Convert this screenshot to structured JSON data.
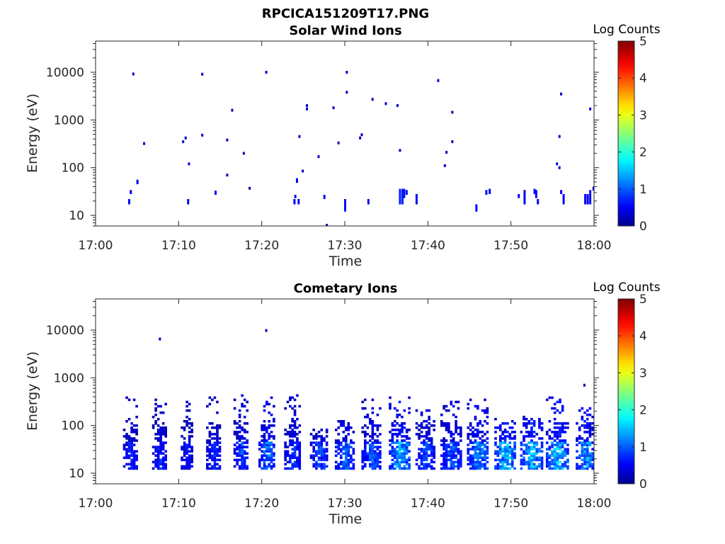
{
  "figure": {
    "title": "RPCICA151209T17.PNG"
  },
  "colorbar_label": "Log Counts",
  "colors": {
    "colormap": "jet",
    "colormap_stops": [
      "#00008f",
      "#0000ff",
      "#00ffff",
      "#ffff00",
      "#ff0000",
      "#800000"
    ]
  },
  "chart_data": [
    {
      "type": "heatmap",
      "title": "Solar Wind Ions",
      "xlabel": "Time",
      "ylabel": "Energy (eV)",
      "x_tick_labels": [
        "17:00",
        "17:10",
        "17:20",
        "17:30",
        "17:40",
        "17:50",
        "18:00"
      ],
      "x_ticks_min": [
        0,
        10,
        20,
        30,
        40,
        50,
        60
      ],
      "xlim_min": [
        0,
        60
      ],
      "y_scale": "log",
      "y_tick_labels": [
        "10",
        "100",
        "1000",
        "10000"
      ],
      "y_ticks": [
        10,
        100,
        1000,
        10000
      ],
      "ylim": [
        6,
        45000
      ],
      "colorbar": {
        "label": "Log Counts",
        "range": [
          0,
          5
        ],
        "tick_labels": [
          "0",
          "1",
          "2",
          "3",
          "4",
          "5"
        ],
        "ticks": [
          0,
          1,
          2,
          3,
          4,
          5
        ]
      },
      "points": [
        [
          4.5,
          9200,
          0.3
        ],
        [
          5.8,
          320,
          0.3
        ],
        [
          10.5,
          350,
          0.3
        ],
        [
          10.8,
          420,
          0.3
        ],
        [
          11.2,
          120,
          0.4
        ],
        [
          12.8,
          9100,
          0.3
        ],
        [
          12.8,
          480,
          0.3
        ],
        [
          15.8,
          380,
          0.3
        ],
        [
          15.8,
          70,
          0.4
        ],
        [
          16.4,
          1600,
          0.3
        ],
        [
          17.8,
          200,
          0.3
        ],
        [
          20.5,
          10000,
          0.3
        ],
        [
          24.5,
          450,
          0.3
        ],
        [
          24.9,
          85,
          0.3
        ],
        [
          25.4,
          2000,
          0.3
        ],
        [
          25.4,
          1700,
          0.3
        ],
        [
          26.8,
          170,
          0.3
        ],
        [
          28.6,
          1800,
          0.3
        ],
        [
          29.2,
          330,
          0.3
        ],
        [
          30.2,
          3800,
          0.3
        ],
        [
          30.2,
          10000,
          0.3
        ],
        [
          31.8,
          420,
          0.3
        ],
        [
          32.0,
          490,
          0.3
        ],
        [
          33.3,
          2700,
          0.3
        ],
        [
          34.9,
          2200,
          0.3
        ],
        [
          36.3,
          2000,
          0.3
        ],
        [
          36.6,
          230,
          0.3
        ],
        [
          41.2,
          6700,
          0.3
        ],
        [
          42.0,
          110,
          0.4
        ],
        [
          42.2,
          210,
          0.3
        ],
        [
          42.9,
          1450,
          0.3
        ],
        [
          42.9,
          350,
          0.3
        ],
        [
          55.5,
          120,
          0.3
        ],
        [
          55.8,
          100,
          0.3
        ],
        [
          55.8,
          450,
          0.3
        ],
        [
          56.0,
          3500,
          0.3
        ],
        [
          59.5,
          1700,
          0.3
        ],
        [
          27.8,
          6.2,
          0.3
        ],
        [
          18.5,
          37,
          0.05
        ]
      ],
      "bars": [
        [
          4.0,
          17,
          22,
          0.5
        ],
        [
          4.2,
          28,
          34,
          0.5
        ],
        [
          5.0,
          45,
          56,
          0.5
        ],
        [
          11.1,
          17,
          22,
          0.5
        ],
        [
          14.4,
          27,
          33,
          0.5
        ],
        [
          23.9,
          17,
          22,
          0.5
        ],
        [
          24.0,
          23,
          27,
          0.5
        ],
        [
          24.2,
          48,
          60,
          0.5
        ],
        [
          24.4,
          17,
          22,
          0.5
        ],
        [
          27.5,
          22,
          27,
          0.5
        ],
        [
          30.0,
          12,
          22,
          0.6
        ],
        [
          32.8,
          17,
          22,
          0.5
        ],
        [
          36.6,
          17,
          36,
          0.7
        ],
        [
          36.9,
          17,
          36,
          0.7
        ],
        [
          37.1,
          23,
          36,
          0.6
        ],
        [
          37.4,
          27,
          34,
          0.5
        ],
        [
          38.6,
          17,
          28,
          0.5
        ],
        [
          45.8,
          12,
          17,
          0.5
        ],
        [
          47.0,
          27,
          34,
          0.5
        ],
        [
          47.4,
          28,
          36,
          0.5
        ],
        [
          50.9,
          23,
          28,
          0.5
        ],
        [
          51.6,
          17,
          34,
          0.5
        ],
        [
          52.8,
          28,
          36,
          0.6
        ],
        [
          53.0,
          23,
          34,
          0.5
        ],
        [
          53.2,
          17,
          22,
          0.5
        ],
        [
          56.0,
          28,
          34,
          0.5
        ],
        [
          56.3,
          17,
          28,
          0.5
        ],
        [
          58.9,
          17,
          28,
          0.5
        ],
        [
          59.2,
          17,
          28,
          0.5
        ],
        [
          59.5,
          17,
          34,
          0.6
        ],
        [
          59.9,
          33,
          40,
          0.5
        ]
      ]
    },
    {
      "type": "heatmap",
      "title": "Cometary Ions",
      "xlabel": "Time",
      "ylabel": "Energy (eV)",
      "x_tick_labels": [
        "17:00",
        "17:10",
        "17:20",
        "17:30",
        "17:40",
        "17:50",
        "18:00"
      ],
      "x_ticks_min": [
        0,
        10,
        20,
        30,
        40,
        50,
        60
      ],
      "xlim_min": [
        0,
        60
      ],
      "y_scale": "log",
      "y_tick_labels": [
        "10",
        "100",
        "1000",
        "10000"
      ],
      "y_ticks": [
        10,
        100,
        1000,
        10000
      ],
      "ylim": [
        6,
        45000
      ],
      "colorbar": {
        "label": "Log Counts",
        "range": [
          0,
          5
        ],
        "tick_labels": [
          "0",
          "1",
          "2",
          "3",
          "4",
          "5"
        ],
        "ticks": [
          0,
          1,
          2,
          3,
          4,
          5
        ]
      },
      "points": [
        [
          7.7,
          6500,
          0.3
        ],
        [
          20.5,
          9800,
          0.3
        ],
        [
          58.8,
          700,
          0.3
        ]
      ],
      "bursts": [
        {
          "t": 4.2,
          "w": 1.8,
          "hi": 400,
          "lvl": 0.8
        },
        {
          "t": 7.7,
          "w": 1.8,
          "hi": 380,
          "lvl": 0.8
        },
        {
          "t": 11.0,
          "w": 1.5,
          "hi": 300,
          "lvl": 0.7
        },
        {
          "t": 14.2,
          "w": 1.8,
          "hi": 500,
          "lvl": 0.8
        },
        {
          "t": 17.5,
          "w": 1.8,
          "hi": 450,
          "lvl": 1.0
        },
        {
          "t": 20.6,
          "w": 2.0,
          "hi": 400,
          "lvl": 1.3
        },
        {
          "t": 23.7,
          "w": 2.0,
          "hi": 450,
          "lvl": 0.9
        },
        {
          "t": 26.9,
          "w": 2.2,
          "hi": 80,
          "lvl": 1.0
        },
        {
          "t": 30.0,
          "w": 2.4,
          "hi": 120,
          "lvl": 1.1
        },
        {
          "t": 33.2,
          "w": 2.4,
          "hi": 350,
          "lvl": 1.1
        },
        {
          "t": 36.6,
          "w": 2.6,
          "hi": 400,
          "lvl": 1.6
        },
        {
          "t": 39.7,
          "w": 2.4,
          "hi": 200,
          "lvl": 1.0
        },
        {
          "t": 42.8,
          "w": 2.6,
          "hi": 300,
          "lvl": 1.1
        },
        {
          "t": 46.0,
          "w": 2.6,
          "hi": 350,
          "lvl": 1.4
        },
        {
          "t": 49.3,
          "w": 2.6,
          "hi": 150,
          "lvl": 1.7
        },
        {
          "t": 52.5,
          "w": 2.8,
          "hi": 150,
          "lvl": 1.7
        },
        {
          "t": 55.6,
          "w": 2.8,
          "hi": 450,
          "lvl": 1.7
        },
        {
          "t": 58.9,
          "w": 2.2,
          "hi": 220,
          "lvl": 1.5
        }
      ]
    }
  ]
}
